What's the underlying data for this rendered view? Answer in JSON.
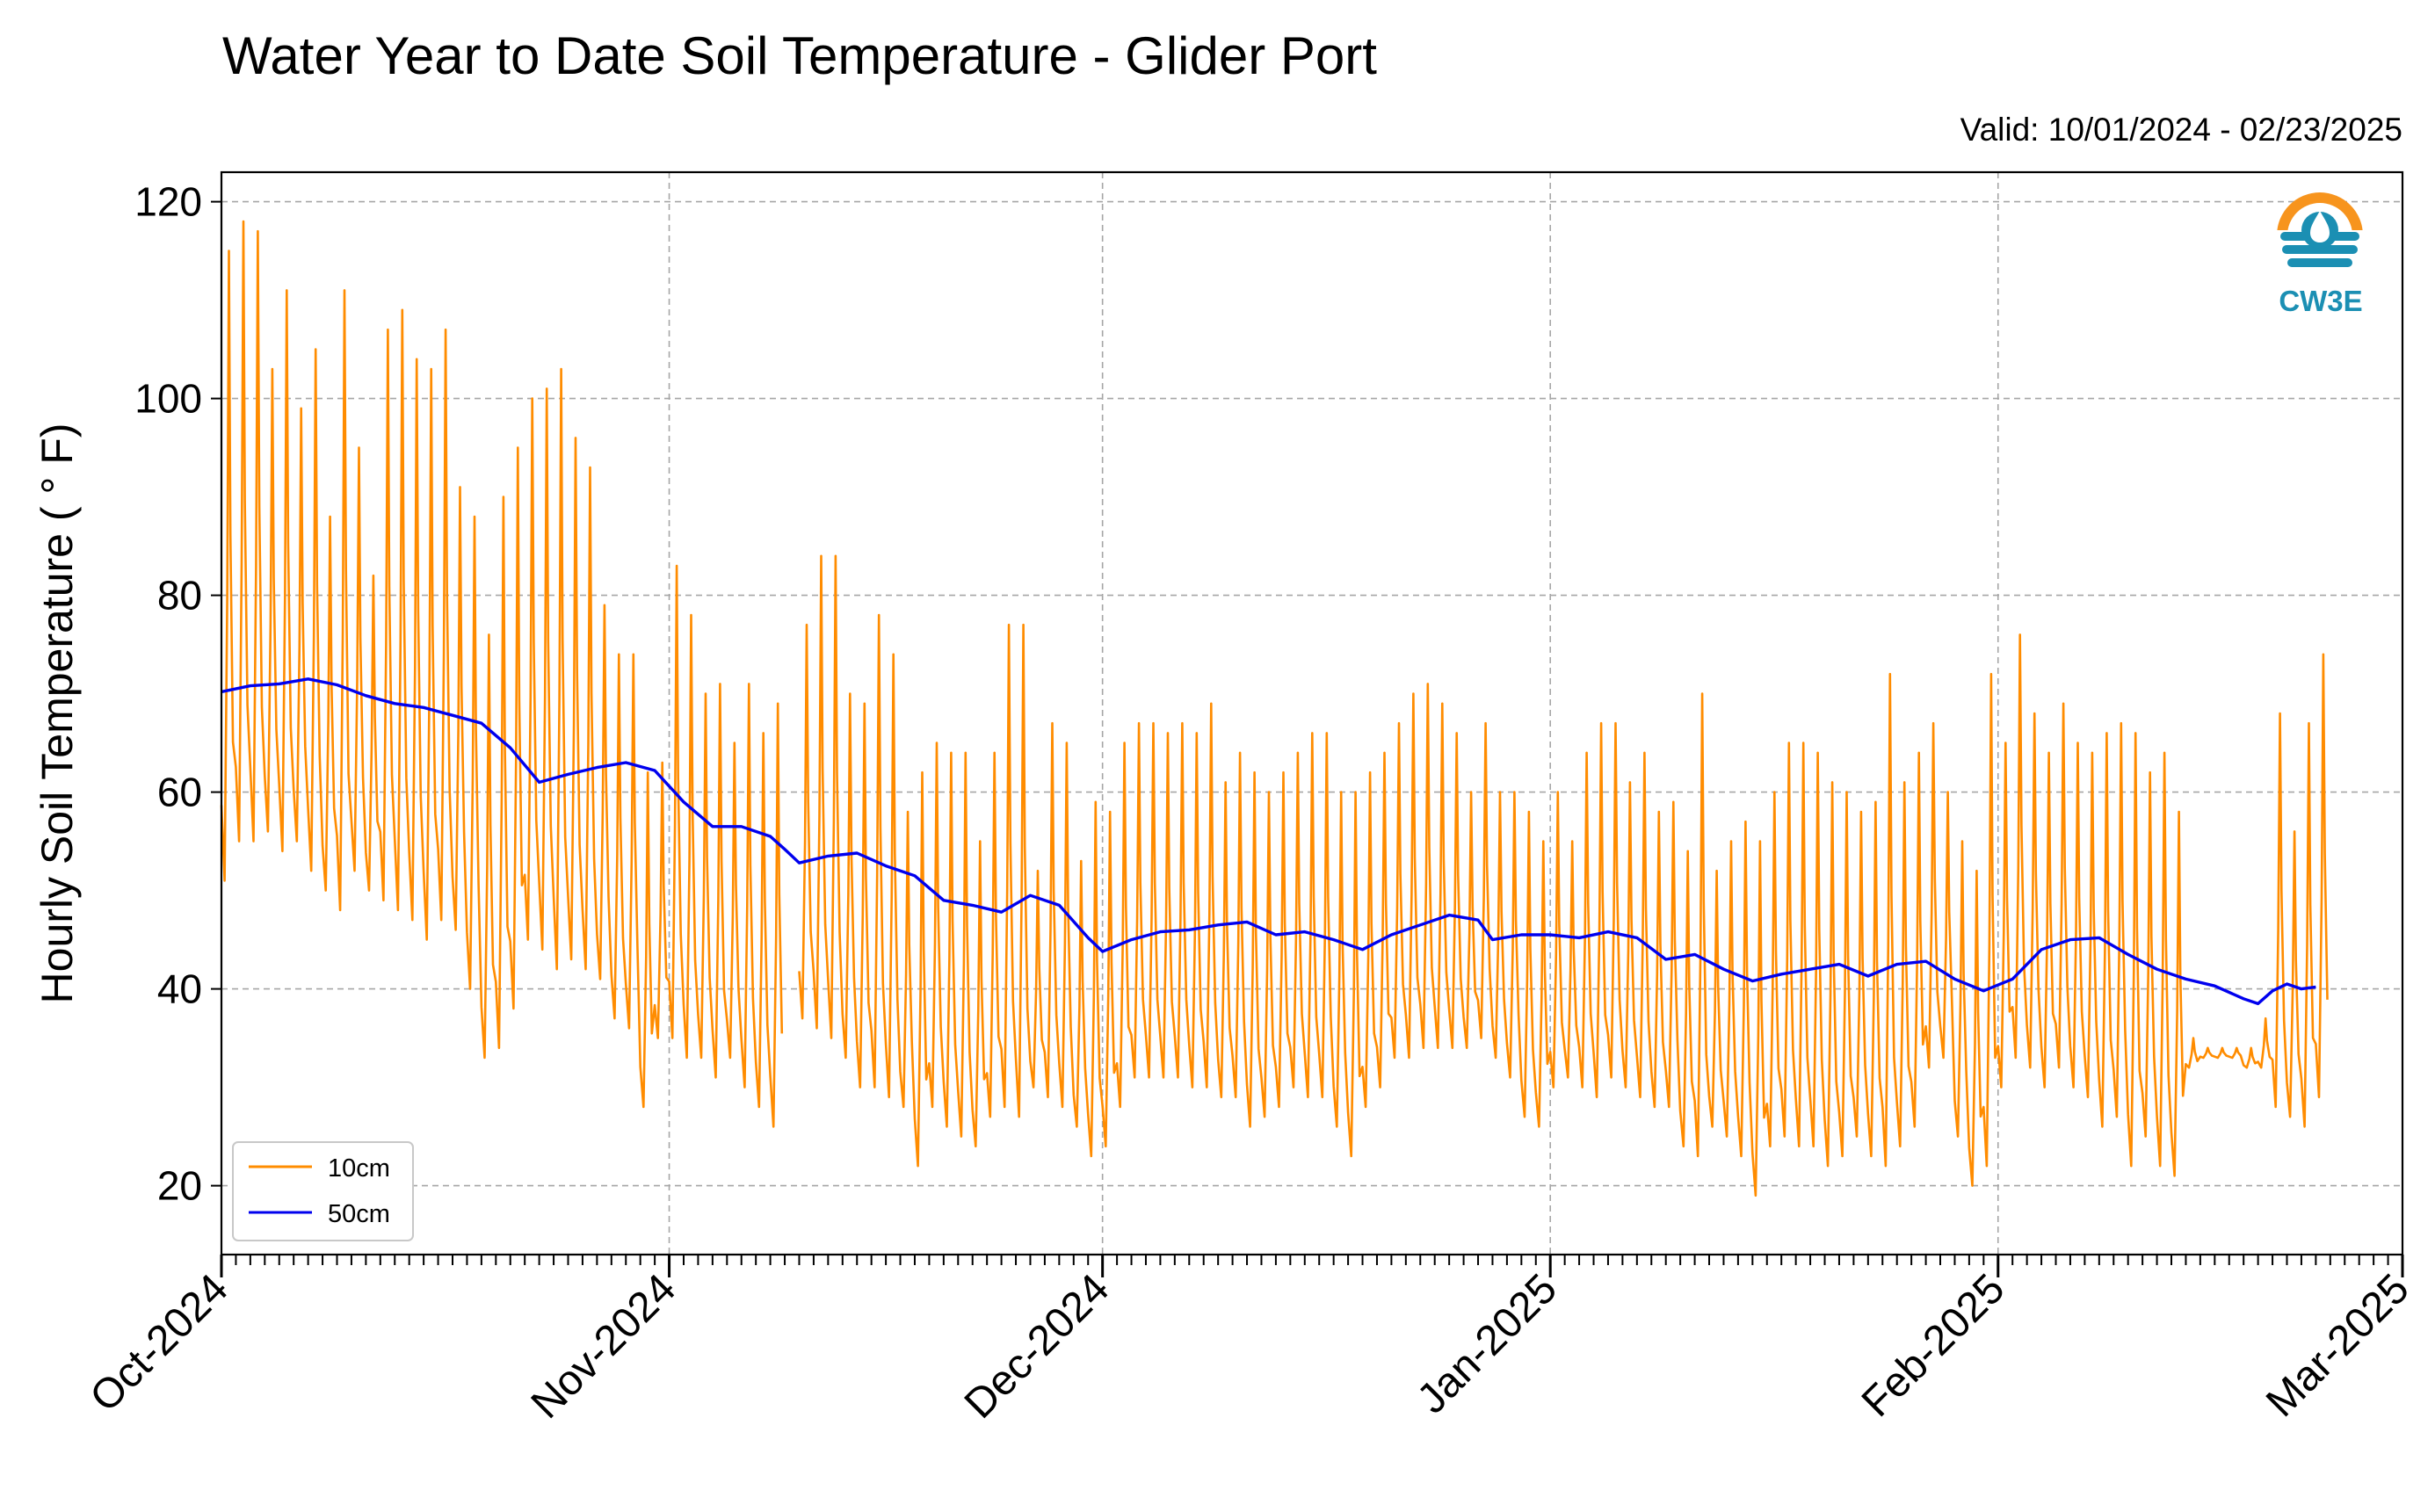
{
  "chart_data": {
    "type": "line",
    "title": "Water Year to Date Soil Temperature - Glider Port",
    "subtitle": "Valid: 10/01/2024 - 02/23/2025",
    "ylabel": "Hourly Soil Temperature ( ° F)",
    "xlabel": "",
    "ylim": [
      13,
      123
    ],
    "xlim": [
      "2024-10-01",
      "2025-03-01"
    ],
    "y_ticks": [
      20,
      40,
      60,
      80,
      100,
      120
    ],
    "x_ticks": [
      {
        "date": "2024-10-01",
        "label": "Oct-2024"
      },
      {
        "date": "2024-11-01",
        "label": "Nov-2024"
      },
      {
        "date": "2024-12-01",
        "label": "Dec-2024"
      },
      {
        "date": "2025-01-01",
        "label": "Jan-2025"
      },
      {
        "date": "2025-02-01",
        "label": "Feb-2025"
      },
      {
        "date": "2025-03-01",
        "label": "Mar-2025"
      }
    ],
    "grid": true,
    "legend_position": "bottom-left",
    "logo_text": "CW3E",
    "colors": {
      "10cm": "#ff8c00",
      "50cm": "#0000ee",
      "logo_orange": "#f7941d",
      "logo_teal": "#1b8fb3"
    },
    "series": [
      {
        "name": "10cm",
        "note_on_data": "hourly diurnal cycle; daily min/max read from chart",
        "daily": [
          [
            "2024-10-01",
            51,
            115
          ],
          [
            "2024-10-02",
            55,
            118
          ],
          [
            "2024-10-03",
            55,
            117
          ],
          [
            "2024-10-04",
            56,
            103
          ],
          [
            "2024-10-05",
            54,
            111
          ],
          [
            "2024-10-06",
            55,
            99
          ],
          [
            "2024-10-07",
            52,
            105
          ],
          [
            "2024-10-08",
            50,
            88
          ],
          [
            "2024-10-09",
            48,
            111
          ],
          [
            "2024-10-10",
            52,
            95
          ],
          [
            "2024-10-11",
            50,
            82
          ],
          [
            "2024-10-12",
            49,
            107
          ],
          [
            "2024-10-13",
            48,
            109
          ],
          [
            "2024-10-14",
            47,
            104
          ],
          [
            "2024-10-15",
            45,
            103
          ],
          [
            "2024-10-16",
            47,
            107
          ],
          [
            "2024-10-17",
            46,
            91
          ],
          [
            "2024-10-18",
            40,
            88
          ],
          [
            "2024-10-19",
            33,
            76
          ],
          [
            "2024-10-20",
            34,
            90
          ],
          [
            "2024-10-21",
            38,
            95
          ],
          [
            "2024-10-22",
            45,
            100
          ],
          [
            "2024-10-23",
            44,
            101
          ],
          [
            "2024-10-24",
            42,
            103
          ],
          [
            "2024-10-25",
            43,
            96
          ],
          [
            "2024-10-26",
            42,
            93
          ],
          [
            "2024-10-27",
            41,
            79
          ],
          [
            "2024-10-28",
            37,
            74
          ],
          [
            "2024-10-29",
            36,
            74
          ],
          [
            "2024-10-30",
            28,
            62
          ],
          [
            "2024-10-31",
            35,
            63
          ],
          [
            "2024-11-01",
            35,
            83
          ],
          [
            "2024-11-02",
            33,
            78
          ],
          [
            "2024-11-03",
            33,
            70
          ],
          [
            "2024-11-04",
            31,
            71
          ],
          [
            "2024-11-05",
            33,
            65
          ],
          [
            "2024-11-06",
            30,
            71
          ],
          [
            "2024-11-07",
            28,
            66
          ],
          [
            "2024-11-08",
            26,
            69
          ],
          [
            "2024-11-10",
            37,
            77
          ],
          [
            "2024-11-11",
            36,
            84
          ],
          [
            "2024-11-12",
            35,
            84
          ],
          [
            "2024-11-13",
            33,
            70
          ],
          [
            "2024-11-14",
            30,
            69
          ],
          [
            "2024-11-15",
            30,
            78
          ],
          [
            "2024-11-16",
            29,
            74
          ],
          [
            "2024-11-17",
            28,
            58
          ],
          [
            "2024-11-18",
            22,
            62
          ],
          [
            "2024-11-19",
            28,
            65
          ],
          [
            "2024-11-20",
            26,
            64
          ],
          [
            "2024-11-21",
            25,
            64
          ],
          [
            "2024-11-22",
            24,
            55
          ],
          [
            "2024-11-23",
            27,
            64
          ],
          [
            "2024-11-24",
            28,
            77
          ],
          [
            "2024-11-25",
            27,
            77
          ],
          [
            "2024-11-26",
            30,
            52
          ],
          [
            "2024-11-27",
            29,
            67
          ],
          [
            "2024-11-28",
            28,
            65
          ],
          [
            "2024-11-29",
            26,
            53
          ],
          [
            "2024-11-30",
            23,
            59
          ],
          [
            "2024-12-01",
            24,
            58
          ],
          [
            "2024-12-02",
            28,
            65
          ],
          [
            "2024-12-03",
            31,
            67
          ],
          [
            "2024-12-04",
            31,
            67
          ],
          [
            "2024-12-05",
            31,
            66
          ],
          [
            "2024-12-06",
            31,
            67
          ],
          [
            "2024-12-07",
            30,
            66
          ],
          [
            "2024-12-08",
            30,
            69
          ],
          [
            "2024-12-09",
            29,
            61
          ],
          [
            "2024-12-10",
            29,
            64
          ],
          [
            "2024-12-11",
            26,
            62
          ],
          [
            "2024-12-12",
            27,
            60
          ],
          [
            "2024-12-13",
            28,
            62
          ],
          [
            "2024-12-14",
            30,
            64
          ],
          [
            "2024-12-15",
            29,
            66
          ],
          [
            "2024-12-16",
            29,
            66
          ],
          [
            "2024-12-17",
            26,
            60
          ],
          [
            "2024-12-18",
            23,
            60
          ],
          [
            "2024-12-19",
            28,
            62
          ],
          [
            "2024-12-20",
            30,
            64
          ],
          [
            "2024-12-21",
            33,
            67
          ],
          [
            "2024-12-22",
            33,
            70
          ],
          [
            "2024-12-23",
            34,
            71
          ],
          [
            "2024-12-24",
            34,
            69
          ],
          [
            "2024-12-25",
            34,
            66
          ],
          [
            "2024-12-26",
            34,
            60
          ],
          [
            "2024-12-27",
            35,
            67
          ],
          [
            "2024-12-28",
            33,
            60
          ],
          [
            "2024-12-29",
            31,
            60
          ],
          [
            "2024-12-30",
            27,
            58
          ],
          [
            "2024-12-31",
            26,
            55
          ],
          [
            "2025-01-01",
            30,
            60
          ],
          [
            "2025-01-02",
            31,
            55
          ],
          [
            "2025-01-03",
            30,
            64
          ],
          [
            "2025-01-04",
            29,
            67
          ],
          [
            "2025-01-05",
            31,
            67
          ],
          [
            "2025-01-06",
            30,
            61
          ],
          [
            "2025-01-07",
            29,
            64
          ],
          [
            "2025-01-08",
            28,
            58
          ],
          [
            "2025-01-09",
            28,
            59
          ],
          [
            "2025-01-10",
            24,
            54
          ],
          [
            "2025-01-11",
            23,
            70
          ],
          [
            "2025-01-12",
            26,
            52
          ],
          [
            "2025-01-13",
            25,
            55
          ],
          [
            "2025-01-14",
            23,
            57
          ],
          [
            "2025-01-15",
            19,
            55
          ],
          [
            "2025-01-16",
            24,
            60
          ],
          [
            "2025-01-17",
            25,
            65
          ],
          [
            "2025-01-18",
            24,
            65
          ],
          [
            "2025-01-19",
            24,
            64
          ],
          [
            "2025-01-20",
            22,
            61
          ],
          [
            "2025-01-21",
            23,
            60
          ],
          [
            "2025-01-22",
            25,
            58
          ],
          [
            "2025-01-23",
            23,
            59
          ],
          [
            "2025-01-24",
            22,
            72
          ],
          [
            "2025-01-25",
            24,
            61
          ],
          [
            "2025-01-26",
            26,
            64
          ],
          [
            "2025-01-27",
            32,
            67
          ],
          [
            "2025-01-28",
            33,
            60
          ],
          [
            "2025-01-29",
            25,
            55
          ],
          [
            "2025-01-30",
            20,
            52
          ],
          [
            "2025-01-31",
            22,
            72
          ],
          [
            "2025-02-01",
            30,
            65
          ],
          [
            "2025-02-02",
            33,
            76
          ],
          [
            "2025-02-03",
            32,
            68
          ],
          [
            "2025-02-04",
            30,
            64
          ],
          [
            "2025-02-05",
            32,
            69
          ],
          [
            "2025-02-06",
            30,
            65
          ],
          [
            "2025-02-07",
            29,
            64
          ],
          [
            "2025-02-08",
            26,
            66
          ],
          [
            "2025-02-09",
            27,
            67
          ],
          [
            "2025-02-10",
            22,
            66
          ],
          [
            "2025-02-11",
            25,
            62
          ],
          [
            "2025-02-12",
            22,
            64
          ],
          [
            "2025-02-13",
            21,
            58
          ],
          [
            "2025-02-14",
            32,
            35
          ],
          [
            "2025-02-15",
            33,
            34
          ],
          [
            "2025-02-16",
            33,
            34
          ],
          [
            "2025-02-17",
            33,
            34
          ],
          [
            "2025-02-18",
            32,
            34
          ],
          [
            "2025-02-19",
            32,
            37
          ],
          [
            "2025-02-20",
            28,
            68
          ],
          [
            "2025-02-21",
            27,
            56
          ],
          [
            "2025-02-22",
            26,
            67
          ],
          [
            "2025-02-23",
            29,
            74
          ]
        ]
      },
      {
        "name": "50cm",
        "note_on_data": "hourly; daily mean read from chart",
        "values": [
          [
            "2024-10-01",
            70.2
          ],
          [
            "2024-10-03",
            70.8
          ],
          [
            "2024-10-05",
            71.0
          ],
          [
            "2024-10-07",
            71.5
          ],
          [
            "2024-10-09",
            70.9
          ],
          [
            "2024-10-11",
            69.8
          ],
          [
            "2024-10-13",
            69.0
          ],
          [
            "2024-10-15",
            68.6
          ],
          [
            "2024-10-17",
            67.8
          ],
          [
            "2024-10-19",
            67.0
          ],
          [
            "2024-10-21",
            64.5
          ],
          [
            "2024-10-23",
            61.0
          ],
          [
            "2024-10-25",
            61.8
          ],
          [
            "2024-10-27",
            62.5
          ],
          [
            "2024-10-29",
            63.0
          ],
          [
            "2024-10-31",
            62.2
          ],
          [
            "2024-11-02",
            59.0
          ],
          [
            "2024-11-04",
            56.5
          ],
          [
            "2024-11-06",
            56.5
          ],
          [
            "2024-11-08",
            55.5
          ],
          [
            "2024-11-09",
            54.2
          ],
          [
            "2024-11-10",
            52.8
          ],
          [
            "2024-11-12",
            53.5
          ],
          [
            "2024-11-14",
            53.8
          ],
          [
            "2024-11-16",
            52.5
          ],
          [
            "2024-11-18",
            51.5
          ],
          [
            "2024-11-20",
            49.0
          ],
          [
            "2024-11-22",
            48.5
          ],
          [
            "2024-11-24",
            47.8
          ],
          [
            "2024-11-26",
            49.5
          ],
          [
            "2024-11-28",
            48.5
          ],
          [
            "2024-11-30",
            45.2
          ],
          [
            "2024-12-01",
            43.8
          ],
          [
            "2024-12-03",
            45.0
          ],
          [
            "2024-12-05",
            45.8
          ],
          [
            "2024-12-07",
            46.0
          ],
          [
            "2024-12-09",
            46.5
          ],
          [
            "2024-12-11",
            46.8
          ],
          [
            "2024-12-13",
            45.5
          ],
          [
            "2024-12-15",
            45.8
          ],
          [
            "2024-12-17",
            45.0
          ],
          [
            "2024-12-19",
            44.0
          ],
          [
            "2024-12-21",
            45.5
          ],
          [
            "2024-12-23",
            46.5
          ],
          [
            "2024-12-25",
            47.5
          ],
          [
            "2024-12-27",
            47.0
          ],
          [
            "2024-12-28",
            45.0
          ],
          [
            "2024-12-30",
            45.5
          ],
          [
            "2025-01-01",
            45.5
          ],
          [
            "2025-01-03",
            45.2
          ],
          [
            "2025-01-05",
            45.8
          ],
          [
            "2025-01-07",
            45.2
          ],
          [
            "2025-01-09",
            43.0
          ],
          [
            "2025-01-11",
            43.5
          ],
          [
            "2025-01-13",
            42.0
          ],
          [
            "2025-01-15",
            40.8
          ],
          [
            "2025-01-17",
            41.5
          ],
          [
            "2025-01-19",
            42.0
          ],
          [
            "2025-01-21",
            42.5
          ],
          [
            "2025-01-23",
            41.3
          ],
          [
            "2025-01-25",
            42.5
          ],
          [
            "2025-01-27",
            42.8
          ],
          [
            "2025-01-29",
            41.0
          ],
          [
            "2025-01-31",
            39.8
          ],
          [
            "2025-02-02",
            41.0
          ],
          [
            "2025-02-04",
            44.0
          ],
          [
            "2025-02-06",
            45.0
          ],
          [
            "2025-02-08",
            45.2
          ],
          [
            "2025-02-10",
            43.5
          ],
          [
            "2025-02-12",
            42.0
          ],
          [
            "2025-02-14",
            41.0
          ],
          [
            "2025-02-16",
            40.3
          ],
          [
            "2025-02-18",
            39.0
          ],
          [
            "2025-02-19",
            38.5
          ],
          [
            "2025-02-20",
            39.8
          ],
          [
            "2025-02-21",
            40.5
          ],
          [
            "2025-02-22",
            40.0
          ],
          [
            "2025-02-23",
            40.2
          ]
        ]
      }
    ]
  }
}
